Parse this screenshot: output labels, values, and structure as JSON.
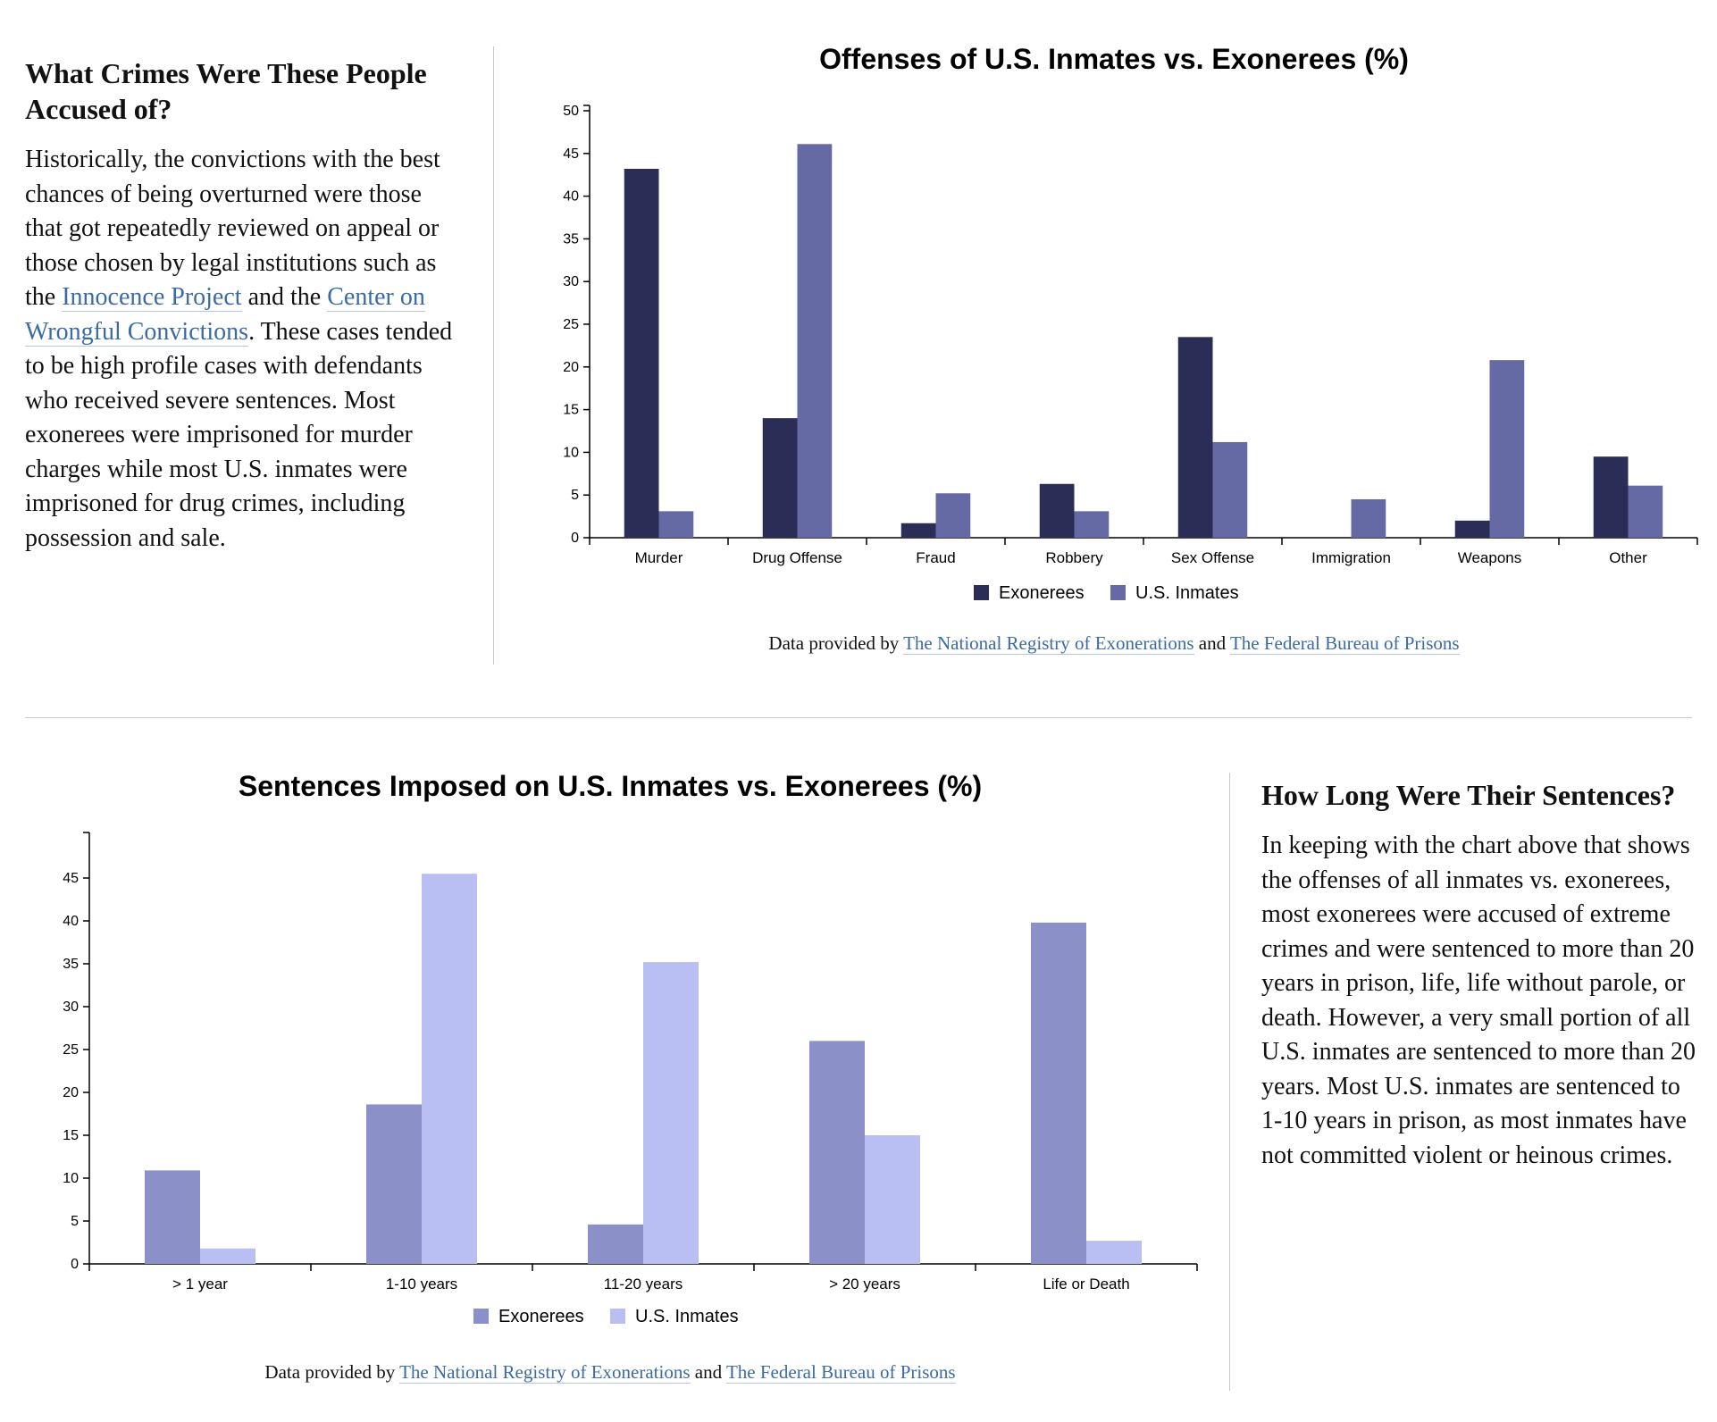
{
  "section1": {
    "heading": "What Crimes Were These People Accused of?",
    "text_before": "Historically, the convictions with the best chances of being overturned were those that got repeatedly reviewed on appeal or those chosen by legal institutions such as the ",
    "link1": "Innocence Project",
    "text_mid": " and the ",
    "link2": "Center on Wrongful Convictions",
    "text_after": ". These cases tended to be high profile cases with defendants who received severe sentences. Most exonerees were imprisoned for murder charges while most U.S. inmates were imprisoned for drug crimes, including possession and sale."
  },
  "section2": {
    "heading": "How Long Were Their Sentences?",
    "body": "In keeping with the chart above that shows the offenses of all inmates vs. exonerees, most exonerees were accused of extreme crimes and were sentenced to more than 20 years in prison, life, life without parole, or death. However, a very small portion of all U.S. inmates are sentenced to more than 20 years. Most U.S. inmates are sentenced to 1-10 years in prison, as most inmates have not committed violent or heinous crimes."
  },
  "source": {
    "prefix": "Data provided by ",
    "link1": "The National Registry of Exonerations",
    "mid": " and ",
    "link2": "The Federal Bureau of Prisons"
  },
  "chart_data": [
    {
      "type": "bar",
      "title": "Offenses of U.S. Inmates vs. Exonerees (%)",
      "categories": [
        "Murder",
        "Drug Offense",
        "Fraud",
        "Robbery",
        "Sex Offense",
        "Immigration",
        "Weapons",
        "Other"
      ],
      "series": [
        {
          "name": "Exonerees",
          "color": "#2a2d55",
          "values": [
            43.2,
            14.0,
            1.7,
            6.3,
            23.5,
            0,
            2.0,
            9.5
          ]
        },
        {
          "name": "U.S. Inmates",
          "color": "#6569a4",
          "values": [
            3.1,
            46.1,
            5.2,
            3.1,
            11.2,
            4.5,
            20.8,
            6.1
          ]
        }
      ],
      "ylim": [
        0,
        50
      ],
      "yticks": [
        0,
        5,
        10,
        15,
        20,
        25,
        30,
        35,
        40,
        45,
        50
      ],
      "xlabel": "",
      "ylabel": "",
      "legend": "bottom-center",
      "grid": false
    },
    {
      "type": "bar",
      "title": "Sentences Imposed on U.S. Inmates vs. Exonerees (%)",
      "categories": [
        "> 1 year",
        "1-10 years",
        "11-20 years",
        "> 20 years",
        "Life or Death"
      ],
      "series": [
        {
          "name": "Exonerees",
          "color": "#8b90c8",
          "values": [
            10.9,
            18.6,
            4.6,
            26.0,
            39.8
          ]
        },
        {
          "name": "U.S. Inmates",
          "color": "#b9bff2",
          "values": [
            1.8,
            45.5,
            35.2,
            15.0,
            2.7
          ]
        }
      ],
      "ylim": [
        0,
        50
      ],
      "yticks": [
        0,
        5,
        10,
        15,
        20,
        25,
        30,
        35,
        40,
        45
      ],
      "xlabel": "",
      "ylabel": "",
      "legend": "bottom-center",
      "grid": false
    }
  ]
}
